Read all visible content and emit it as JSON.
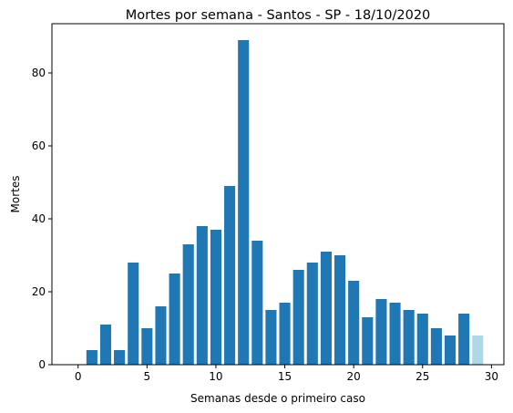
{
  "chart_data": {
    "type": "bar",
    "title": "Mortes por semana - Santos - SP - 18/10/2020",
    "xlabel": "Semanas desde o primeiro caso",
    "ylabel": "Mortes",
    "xlim": [
      -1.9,
      30.9
    ],
    "ylim": [
      0,
      93.5
    ],
    "xticks": [
      0,
      5,
      10,
      15,
      20,
      25,
      30
    ],
    "yticks": [
      0,
      20,
      40,
      60,
      80
    ],
    "grid": false,
    "legend": "none",
    "x": [
      0,
      1,
      2,
      3,
      4,
      5,
      6,
      7,
      8,
      9,
      10,
      11,
      12,
      13,
      14,
      15,
      16,
      17,
      18,
      19,
      20,
      21,
      22,
      23,
      24,
      25,
      26,
      27,
      28,
      29
    ],
    "values": [
      0,
      4,
      11,
      4,
      28,
      10,
      16,
      25,
      33,
      38,
      37,
      49,
      89,
      34,
      15,
      17,
      26,
      28,
      31,
      30,
      23,
      13,
      18,
      17,
      15,
      14,
      10,
      8,
      14,
      8
    ],
    "bar_colors": [
      "#1f77b4",
      "#1f77b4",
      "#1f77b4",
      "#1f77b4",
      "#1f77b4",
      "#1f77b4",
      "#1f77b4",
      "#1f77b4",
      "#1f77b4",
      "#1f77b4",
      "#1f77b4",
      "#1f77b4",
      "#1f77b4",
      "#1f77b4",
      "#1f77b4",
      "#1f77b4",
      "#1f77b4",
      "#1f77b4",
      "#1f77b4",
      "#1f77b4",
      "#1f77b4",
      "#1f77b4",
      "#1f77b4",
      "#1f77b4",
      "#1f77b4",
      "#1f77b4",
      "#1f77b4",
      "#1f77b4",
      "#1f77b4",
      "#add8e6"
    ]
  }
}
